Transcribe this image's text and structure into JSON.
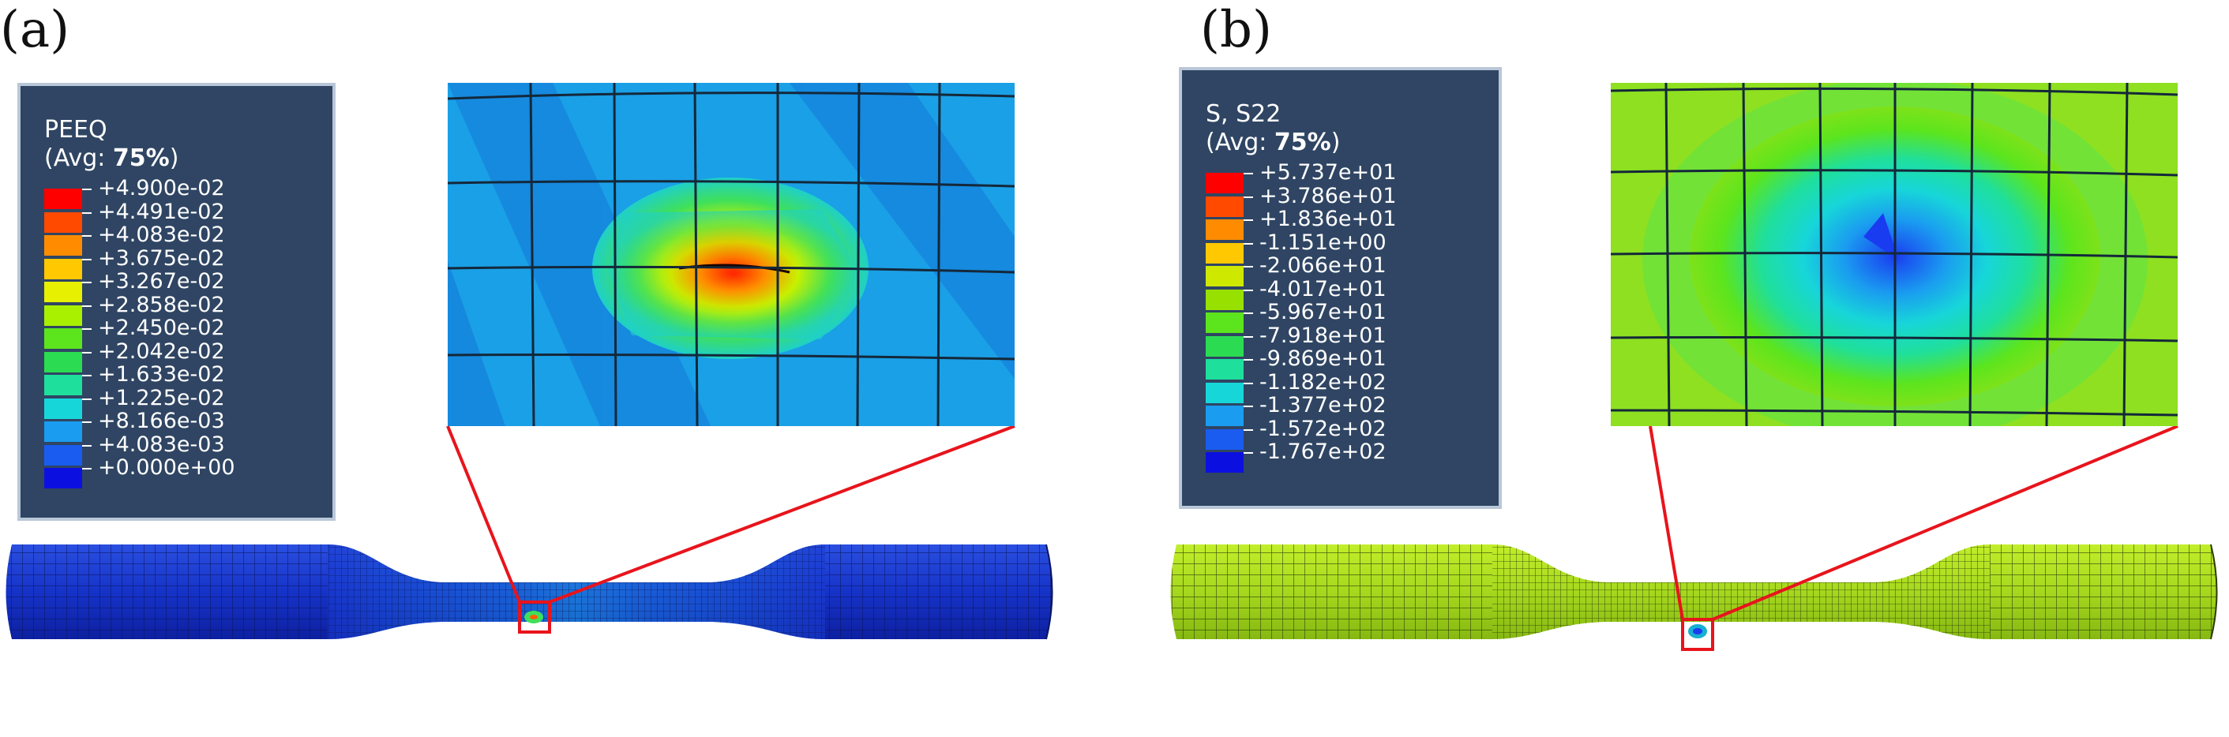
{
  "panels": [
    {
      "label": "(a)",
      "legend": {
        "title": "PEEQ",
        "avg_prefix": "(Avg: ",
        "avg_value": "75%",
        "avg_suffix": ")",
        "values": [
          "+4.900e-02",
          "+4.491e-02",
          "+4.083e-02",
          "+3.675e-02",
          "+3.267e-02",
          "+2.858e-02",
          "+2.450e-02",
          "+2.042e-02",
          "+1.633e-02",
          "+1.225e-02",
          "+8.166e-03",
          "+4.083e-03",
          "+0.000e+00"
        ],
        "colors": [
          "#ff0000",
          "#ff4a00",
          "#ff8c00",
          "#ffc800",
          "#e6f000",
          "#a8f000",
          "#5ce51d",
          "#2bdc52",
          "#1fdf9c",
          "#17d6d9",
          "#1a9cf0",
          "#1a5cf0",
          "#0b10e0"
        ]
      }
    },
    {
      "label": "(b)",
      "legend": {
        "title": "S, S22",
        "avg_prefix": "(Avg: ",
        "avg_value": "75%",
        "avg_suffix": ")",
        "values": [
          "+5.737e+01",
          "+3.786e+01",
          "+1.836e+01",
          "-1.151e+00",
          "-2.066e+01",
          "-4.017e+01",
          "-5.967e+01",
          "-7.918e+01",
          "-9.869e+01",
          "-1.182e+02",
          "-1.377e+02",
          "-1.572e+02",
          "-1.767e+02"
        ],
        "colors": [
          "#ff0000",
          "#ff4a00",
          "#ff8c00",
          "#ffc800",
          "#cfe800",
          "#98e000",
          "#5ce51d",
          "#2bdc52",
          "#1fdf9c",
          "#17d6d9",
          "#1a9cf0",
          "#1a5cf0",
          "#0b10e0"
        ]
      }
    }
  ],
  "colors": {
    "specimen_a": "#1537c8",
    "specimen_b": "#a6d81e",
    "zoom_outline": "#e8141c",
    "mesh_line": "#1a2a3a"
  }
}
